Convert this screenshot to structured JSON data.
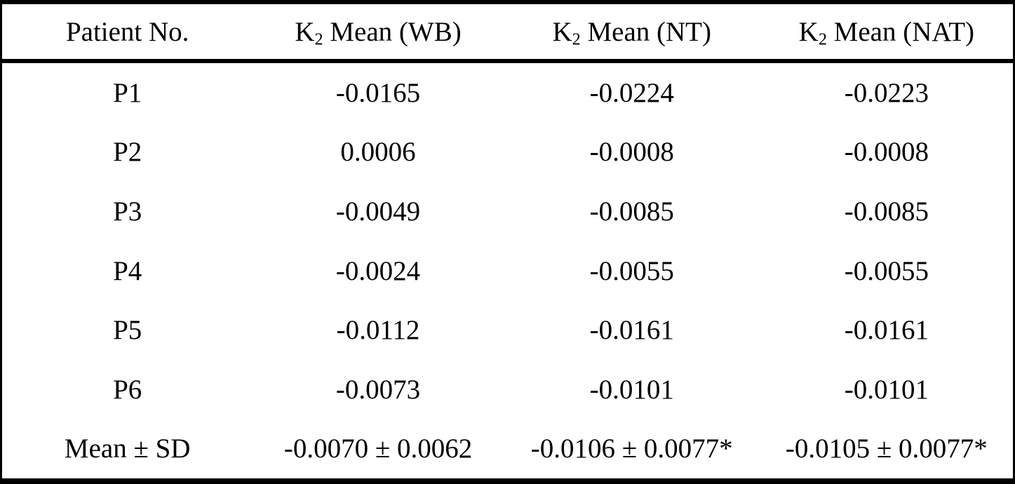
{
  "table": {
    "columns": [
      {
        "prefix": "Patient No.",
        "sub": "",
        "rest": ""
      },
      {
        "prefix": "K",
        "sub": "2",
        "rest": " Mean (WB)"
      },
      {
        "prefix": "K",
        "sub": "2",
        "rest": " Mean (NT)"
      },
      {
        "prefix": "K",
        "sub": "2",
        "rest": " Mean (NAT)"
      }
    ],
    "rows": [
      {
        "patient": "P1",
        "wb": "-0.0165",
        "nt": "-0.0224",
        "nat": "-0.0223"
      },
      {
        "patient": "P2",
        "wb": "0.0006",
        "nt": "-0.0008",
        "nat": "-0.0008"
      },
      {
        "patient": "P3",
        "wb": "-0.0049",
        "nt": "-0.0085",
        "nat": "-0.0085"
      },
      {
        "patient": "P4",
        "wb": "-0.0024",
        "nt": "-0.0055",
        "nat": "-0.0055"
      },
      {
        "patient": "P5",
        "wb": "-0.0112",
        "nt": "-0.0161",
        "nat": "-0.0161"
      },
      {
        "patient": "P6",
        "wb": "-0.0073",
        "nt": "-0.0101",
        "nat": "-0.0101"
      },
      {
        "patient": "Mean ± SD",
        "wb": "-0.0070 ± 0.0062",
        "nt": "-0.0106 ± 0.0077*",
        "nat": "-0.0105 ± 0.0077*"
      }
    ]
  },
  "chart_data": {
    "type": "table",
    "columns": [
      "Patient No.",
      "K2 Mean (WB)",
      "K2 Mean (NT)",
      "K2 Mean (NAT)"
    ],
    "patients": [
      "P1",
      "P2",
      "P3",
      "P4",
      "P5",
      "P6"
    ],
    "series": [
      {
        "name": "K2 Mean (WB)",
        "values": [
          -0.0165,
          0.0006,
          -0.0049,
          -0.0024,
          -0.0112,
          -0.0073
        ],
        "mean_sd": "-0.0070 ± 0.0062"
      },
      {
        "name": "K2 Mean (NT)",
        "values": [
          -0.0224,
          -0.0008,
          -0.0085,
          -0.0055,
          -0.0161,
          -0.0101
        ],
        "mean_sd": "-0.0106 ± 0.0077*"
      },
      {
        "name": "K2 Mean (NAT)",
        "values": [
          -0.0223,
          -0.0008,
          -0.0085,
          -0.0055,
          -0.0161,
          -0.0101
        ],
        "mean_sd": "-0.0105 ± 0.0077*"
      }
    ],
    "summary_row_label": "Mean ± SD",
    "footnote_marker": "*"
  },
  "colors": {
    "text": "#000000",
    "background": "#ffffff",
    "border": "#000000"
  }
}
